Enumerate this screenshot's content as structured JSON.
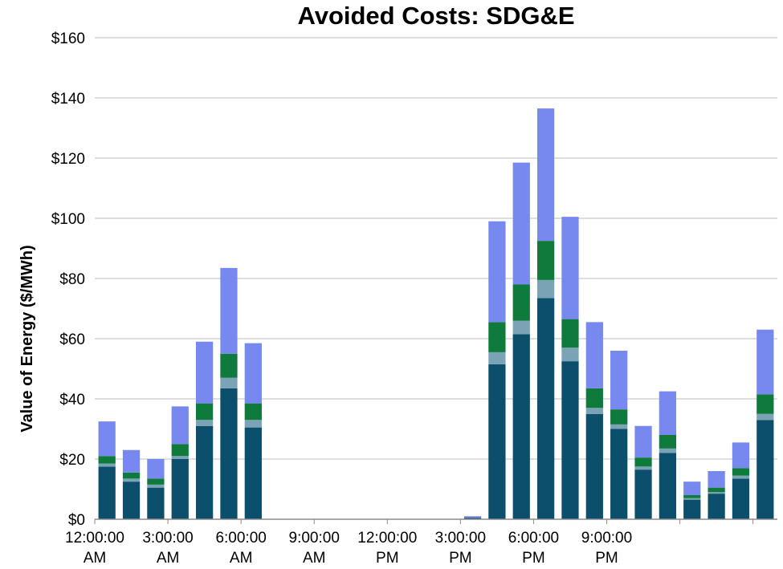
{
  "chart_data": {
    "type": "bar",
    "stacked": true,
    "title": "Avoided Costs: SDG&E",
    "xlabel": "",
    "ylabel": "Value of Energy ($/MWh)",
    "ylim": [
      0,
      160
    ],
    "ytick_values": [
      0,
      20,
      40,
      60,
      80,
      100,
      120,
      140,
      160
    ],
    "ytick_labels": [
      "$0",
      "$20",
      "$40",
      "$60",
      "$80",
      "$100",
      "$120",
      "$140",
      "$160"
    ],
    "grid": "horizontal",
    "legend": "none",
    "xtick_labels": [
      {
        "hour": 0,
        "line1": "12:00:00",
        "line2": "AM"
      },
      {
        "hour": 3,
        "line1": "3:00:00",
        "line2": "AM"
      },
      {
        "hour": 6,
        "line1": "6:00:00",
        "line2": "AM"
      },
      {
        "hour": 9,
        "line1": "9:00:00",
        "line2": "AM"
      },
      {
        "hour": 12,
        "line1": "12:00:00",
        "line2": "PM"
      },
      {
        "hour": 15,
        "line1": "3:00:00",
        "line2": "PM"
      },
      {
        "hour": 18,
        "line1": "6:00:00",
        "line2": "PM"
      },
      {
        "hour": 21,
        "line1": "9:00:00",
        "line2": "PM"
      }
    ],
    "hours": [
      0,
      1,
      2,
      3,
      4,
      5,
      6,
      7,
      8,
      9,
      10,
      11,
      12,
      13,
      14,
      15,
      16,
      17,
      18,
      19,
      20,
      21,
      22,
      23,
      24,
      25,
      26,
      27
    ],
    "series": [
      {
        "color": "#0b4f6c",
        "values": [
          17.5,
          12.5,
          10.5,
          20,
          31,
          43.5,
          30.5,
          0,
          0,
          0,
          0,
          0,
          0,
          0,
          0,
          0.5,
          51.5,
          61.5,
          73.5,
          52.5,
          35,
          30,
          16.5,
          22,
          6.5,
          8.5,
          13.5,
          33
        ]
      },
      {
        "color": "#7ba3b6",
        "values": [
          1,
          1,
          1,
          1,
          2,
          3.5,
          2.5,
          0,
          0,
          0,
          0,
          0,
          0,
          0,
          0,
          0,
          4,
          4.5,
          6,
          4.5,
          2,
          1.5,
          1,
          1.5,
          0.5,
          0.5,
          1,
          2
        ]
      },
      {
        "color": "#0e7a3c",
        "values": [
          2.5,
          2,
          2,
          4,
          5.5,
          8,
          5.5,
          0,
          0,
          0,
          0,
          0,
          0,
          0,
          0,
          0,
          10,
          12,
          13,
          9.5,
          6.5,
          5,
          3,
          4.5,
          1,
          1.5,
          2.5,
          6.5
        ]
      },
      {
        "color": "#7788ee",
        "values": [
          11.5,
          7.5,
          6.5,
          12.5,
          20.5,
          28.5,
          20,
          0,
          0,
          0,
          0,
          0,
          0,
          0,
          0,
          0.5,
          33.5,
          40.5,
          44,
          34,
          22,
          19.5,
          10.5,
          14.5,
          4.5,
          5.5,
          8.5,
          21.5
        ]
      }
    ]
  }
}
